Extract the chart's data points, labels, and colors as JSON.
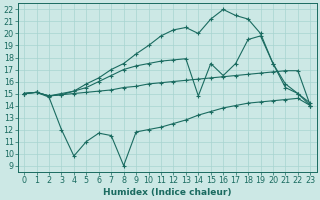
{
  "xlabel": "Humidex (Indice chaleur)",
  "bg_color": "#cce8e5",
  "line_color": "#1a6b60",
  "grid_color": "#a8d4d0",
  "xlim": [
    -0.5,
    23.5
  ],
  "ylim": [
    8.5,
    22.5
  ],
  "xticks": [
    0,
    1,
    2,
    3,
    4,
    5,
    6,
    7,
    8,
    9,
    10,
    11,
    12,
    13,
    14,
    15,
    16,
    17,
    18,
    19,
    20,
    21,
    22,
    23
  ],
  "yticks": [
    9,
    10,
    11,
    12,
    13,
    14,
    15,
    16,
    17,
    18,
    19,
    20,
    21,
    22
  ],
  "line1_x": [
    0,
    1,
    2,
    3,
    4,
    5,
    6,
    7,
    8,
    9,
    10,
    11,
    12,
    13,
    14,
    15,
    16,
    17,
    18,
    19,
    20,
    21,
    22,
    23
  ],
  "line1_y": [
    15.0,
    15.1,
    14.7,
    12.0,
    9.8,
    11.0,
    11.7,
    11.5,
    9.0,
    11.8,
    12.0,
    12.2,
    12.5,
    12.8,
    13.2,
    13.5,
    13.8,
    14.0,
    14.2,
    14.3,
    14.4,
    14.5,
    14.6,
    14.0
  ],
  "line2_x": [
    0,
    1,
    2,
    3,
    4,
    5,
    6,
    7,
    8,
    9,
    10,
    11,
    12,
    13,
    14,
    15,
    16,
    17,
    18,
    19,
    20,
    21,
    22,
    23
  ],
  "line2_y": [
    15.0,
    15.1,
    14.8,
    14.9,
    15.0,
    15.1,
    15.2,
    15.3,
    15.5,
    15.6,
    15.8,
    15.9,
    16.0,
    16.1,
    16.2,
    16.3,
    16.4,
    16.5,
    16.6,
    16.7,
    16.8,
    16.9,
    16.9,
    14.0
  ],
  "line3_x": [
    0,
    1,
    2,
    3,
    4,
    5,
    6,
    7,
    8,
    9,
    10,
    11,
    12,
    13,
    14,
    15,
    16,
    17,
    18,
    19,
    20,
    21,
    22,
    23
  ],
  "line3_y": [
    15.0,
    15.1,
    14.8,
    15.0,
    15.2,
    15.5,
    16.0,
    16.5,
    17.0,
    17.3,
    17.5,
    17.7,
    17.8,
    17.9,
    14.8,
    17.5,
    16.5,
    17.5,
    19.5,
    19.8,
    17.5,
    15.5,
    15.0,
    14.0
  ],
  "line4_x": [
    0,
    1,
    2,
    3,
    4,
    5,
    6,
    7,
    8,
    9,
    10,
    11,
    12,
    13,
    14,
    15,
    16,
    17,
    18,
    19,
    20,
    21,
    22,
    23
  ],
  "line4_y": [
    15.0,
    15.1,
    14.8,
    14.9,
    15.2,
    15.8,
    16.3,
    17.0,
    17.5,
    18.3,
    19.0,
    19.8,
    20.3,
    20.5,
    20.0,
    21.2,
    22.0,
    21.5,
    21.2,
    20.0,
    17.5,
    15.8,
    15.0,
    14.2
  ]
}
